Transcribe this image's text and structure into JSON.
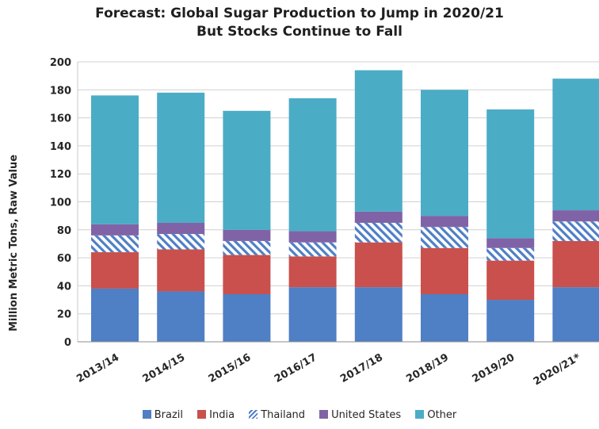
{
  "chart_data": {
    "type": "bar",
    "stacked": true,
    "title": [
      "Forecast: Global Sugar Production to Jump in 2020/21",
      "But Stocks Continue to Fall"
    ],
    "ylabel": "Million Metric Tons, Raw Value",
    "xlabel": "",
    "ylim": [
      0,
      200
    ],
    "yticks": [
      "0",
      "20",
      "40",
      "60",
      "80",
      "100",
      "120",
      "140",
      "160",
      "180",
      "200"
    ],
    "grid": true,
    "legend_position": "bottom",
    "categories": [
      "2013/14",
      "2014/15",
      "2015/16",
      "2016/17",
      "2017/18",
      "2018/19",
      "2019/20",
      "2020/21*"
    ],
    "series": [
      {
        "name": "Brazil",
        "color": "#4f7fc5",
        "pattern": "solid",
        "values": [
          38,
          36,
          34,
          39,
          39,
          34,
          30,
          39
        ]
      },
      {
        "name": "India",
        "color": "#c9504c",
        "pattern": "solid",
        "values": [
          26,
          30,
          28,
          22,
          32,
          33,
          28,
          33
        ]
      },
      {
        "name": "Thailand",
        "color": "#4f7fc5",
        "pattern": "diagonal-hatch",
        "values": [
          12,
          11,
          10,
          10,
          14,
          15,
          9,
          14
        ]
      },
      {
        "name": "United States",
        "color": "#8063a6",
        "pattern": "solid",
        "values": [
          8,
          8,
          8,
          8,
          8,
          8,
          7,
          8
        ]
      },
      {
        "name": "Other",
        "color": "#4bacc6",
        "pattern": "solid",
        "values": [
          92,
          93,
          85,
          95,
          101,
          90,
          92,
          94
        ]
      }
    ]
  },
  "legend_labels": [
    "Brazil",
    "India",
    "Thailand",
    "United States",
    "Other"
  ]
}
